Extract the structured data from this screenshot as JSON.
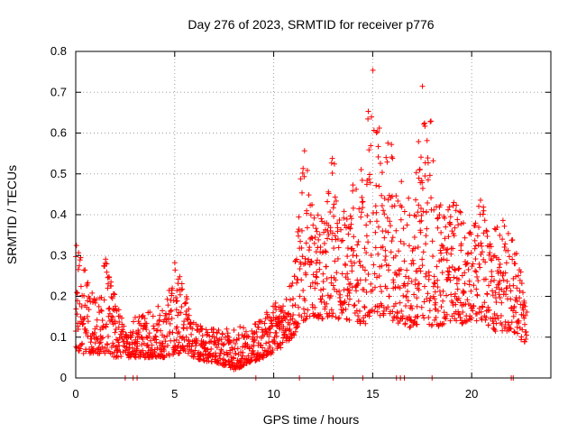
{
  "chart_data": {
    "type": "scatter",
    "title": "Day 276 of 2023, SRMTID for receiver p776",
    "xlabel": "GPS time / hours",
    "ylabel": "SRMTID / TECUs",
    "xlim": [
      0,
      24
    ],
    "ylim": [
      0,
      0.8
    ],
    "xticks": [
      0,
      5,
      10,
      15,
      20
    ],
    "xtick_labels": [
      "0",
      "5",
      "10",
      "15",
      "20"
    ],
    "yticks": [
      0,
      0.1,
      0.2,
      0.3,
      0.4,
      0.5,
      0.6,
      0.7,
      0.8
    ],
    "ytick_labels": [
      "0",
      "0.1",
      "0.2",
      "0.3",
      "0.4",
      "0.5",
      "0.6",
      "0.7",
      "0.8"
    ],
    "grid": true,
    "marker": "+",
    "color": "#ff0000",
    "series": [
      {
        "name": "SRMTID",
        "description": "Dense point cloud; values read as an envelope along the time axis",
        "envelope_hours": [
          0,
          0.5,
          1,
          1.5,
          2,
          2.5,
          3,
          3.5,
          4,
          4.5,
          5,
          5.5,
          6,
          6.5,
          7,
          7.5,
          8,
          8.5,
          9,
          9.5,
          10,
          10.5,
          11,
          11.5,
          12,
          12.5,
          13,
          13.5,
          14,
          14.5,
          15,
          15.5,
          16,
          16.5,
          17,
          17.5,
          18,
          18.5,
          19,
          19.5,
          20,
          20.5,
          21,
          21.5,
          22,
          22.5,
          22.8
        ],
        "low": [
          0.06,
          0.06,
          0.06,
          0.06,
          0.05,
          0.05,
          0.05,
          0.05,
          0.05,
          0.05,
          0.06,
          0.06,
          0.05,
          0.04,
          0.04,
          0.03,
          0.02,
          0.03,
          0.04,
          0.05,
          0.06,
          0.08,
          0.1,
          0.14,
          0.15,
          0.14,
          0.15,
          0.14,
          0.14,
          0.13,
          0.14,
          0.15,
          0.14,
          0.13,
          0.12,
          0.14,
          0.12,
          0.13,
          0.14,
          0.13,
          0.14,
          0.14,
          0.12,
          0.1,
          0.12,
          0.09,
          0.08
        ],
        "high": [
          0.34,
          0.26,
          0.2,
          0.3,
          0.2,
          0.12,
          0.15,
          0.16,
          0.18,
          0.17,
          0.29,
          0.21,
          0.16,
          0.12,
          0.12,
          0.12,
          0.12,
          0.13,
          0.14,
          0.16,
          0.18,
          0.2,
          0.25,
          0.59,
          0.4,
          0.4,
          0.55,
          0.45,
          0.5,
          0.52,
          0.76,
          0.55,
          0.6,
          0.48,
          0.42,
          0.72,
          0.68,
          0.4,
          0.45,
          0.4,
          0.35,
          0.45,
          0.35,
          0.4,
          0.36,
          0.27,
          0.18
        ],
        "zero_values_hours": [
          2.5,
          2.9,
          3.1,
          9.1,
          11.3,
          13.0,
          14.5,
          16.2,
          16.4,
          16.6,
          18.0,
          22.0,
          22.1
        ]
      }
    ]
  }
}
